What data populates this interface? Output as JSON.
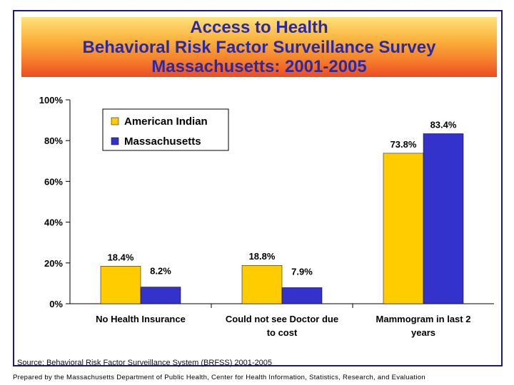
{
  "chart_data": {
    "type": "bar",
    "title_lines": [
      "Access to Health",
      "Behavioral Risk Factor Surveillance Survey",
      "Massachusetts: 2001-2005"
    ],
    "categories": [
      [
        "No Health Insurance"
      ],
      [
        "Could not see Doctor due",
        "to cost"
      ],
      [
        "Mammogram in last 2",
        "years"
      ]
    ],
    "series": [
      {
        "name": "American Indian",
        "values": [
          18.4,
          18.8,
          73.8
        ],
        "labels": [
          "18.4%",
          "18.8%",
          "73.8%"
        ],
        "color": "#ffcc00"
      },
      {
        "name": "Massachusetts",
        "values": [
          8.2,
          7.9,
          83.4
        ],
        "labels": [
          "8.2%",
          "7.9%",
          "83.4%"
        ],
        "color": "#3333cc"
      }
    ],
    "ylim": [
      0,
      100
    ],
    "yticks": [
      "0%",
      "20%",
      "40%",
      "60%",
      "80%",
      "100%"
    ],
    "ytick_values": [
      0,
      20,
      40,
      60,
      80,
      100
    ],
    "xlabel": "",
    "ylabel": "",
    "grid": false,
    "legend_position": "top-left"
  },
  "source": "Source: Behavioral Risk Factor Surveillance System (BRFSS) 2001-2005",
  "footer": "Prepared by the Massachusetts Department of Public Health, Center for Health Information, Statistics, Research, and Evaluation"
}
